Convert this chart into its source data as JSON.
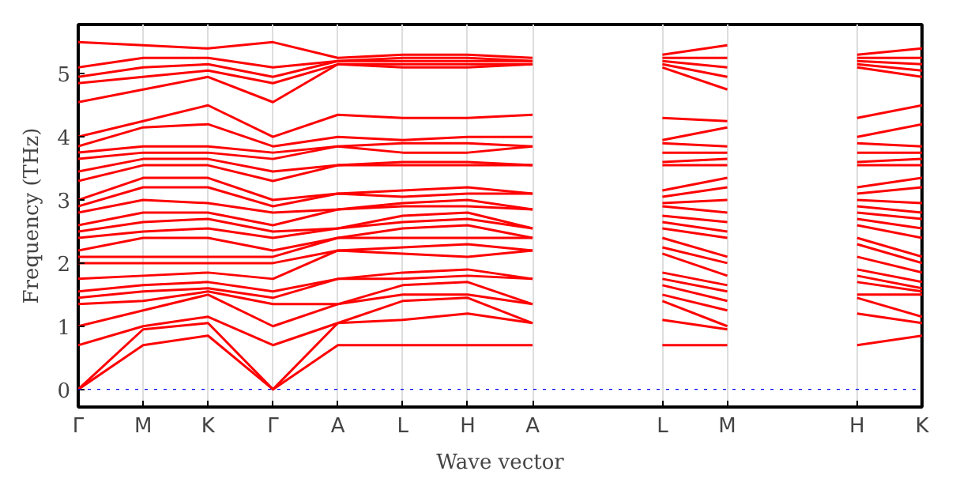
{
  "chart_data": {
    "type": "line",
    "ylabel": "Frequency (THz)",
    "xlabel": "Wave vector",
    "ylim": [
      -0.28,
      5.78
    ],
    "grid": "x",
    "line_style": "solid",
    "categories": [
      "Γ",
      "M",
      "K",
      "Γ",
      "A",
      "L",
      "H",
      "A",
      null,
      "L",
      "M",
      null,
      "H",
      "K"
    ],
    "yticks": [
      0,
      1,
      2,
      3,
      4,
      5
    ],
    "ref_lines": [
      {
        "axis": "y",
        "value": 0,
        "label": null,
        "color": "#0000ff",
        "line_style": "dotted"
      }
    ],
    "series": [
      {
        "color": "#ff0000",
        "values": [
          0,
          0.7,
          0.85,
          0,
          0.7,
          0.7,
          0.7,
          0.7,
          null,
          0.7,
          0.7,
          null,
          0.7,
          0.85
        ]
      },
      {
        "color": "#ff0000",
        "values": [
          0,
          0.95,
          1.05,
          0,
          1.05,
          1.1,
          1.2,
          1.05,
          null,
          1.1,
          0.95,
          null,
          1.2,
          1.05
        ]
      },
      {
        "color": "#ff0000",
        "values": [
          0.7,
          1.0,
          1.15,
          0.7,
          1.05,
          1.4,
          1.45,
          1.05,
          null,
          1.4,
          1.0,
          null,
          1.45,
          1.15
        ]
      },
      {
        "color": "#ff0000",
        "values": [
          1.0,
          1.25,
          1.5,
          1.0,
          1.35,
          1.5,
          1.5,
          1.35,
          null,
          1.5,
          1.25,
          null,
          1.5,
          1.5
        ]
      },
      {
        "color": "#ff0000",
        "values": [
          1.35,
          1.4,
          1.55,
          1.35,
          1.35,
          1.65,
          1.7,
          1.35,
          null,
          1.65,
          1.4,
          null,
          1.7,
          1.55
        ]
      },
      {
        "color": "#ff0000",
        "values": [
          1.45,
          1.55,
          1.6,
          1.45,
          1.75,
          1.75,
          1.8,
          1.75,
          null,
          1.75,
          1.55,
          null,
          1.8,
          1.6
        ]
      },
      {
        "color": "#ff0000",
        "values": [
          1.55,
          1.65,
          1.7,
          1.55,
          1.75,
          1.85,
          1.9,
          1.75,
          null,
          1.85,
          1.65,
          null,
          1.9,
          1.7
        ]
      },
      {
        "color": "#ff0000",
        "values": [
          1.75,
          1.8,
          1.85,
          1.75,
          2.2,
          2.15,
          2.1,
          2.2,
          null,
          2.15,
          1.8,
          null,
          2.1,
          1.85
        ]
      },
      {
        "color": "#ff0000",
        "values": [
          2.0,
          2.0,
          2.0,
          2.0,
          2.2,
          2.25,
          2.3,
          2.2,
          null,
          2.25,
          2.0,
          null,
          2.3,
          2.0
        ]
      },
      {
        "color": "#ff0000",
        "values": [
          2.1,
          2.1,
          2.1,
          2.1,
          2.4,
          2.4,
          2.4,
          2.4,
          null,
          2.4,
          2.1,
          null,
          2.4,
          2.1
        ]
      },
      {
        "color": "#ff0000",
        "values": [
          2.2,
          2.4,
          2.4,
          2.2,
          2.4,
          2.55,
          2.6,
          2.4,
          null,
          2.55,
          2.4,
          null,
          2.6,
          2.4
        ]
      },
      {
        "color": "#ff0000",
        "values": [
          2.4,
          2.5,
          2.55,
          2.4,
          2.55,
          2.65,
          2.7,
          2.55,
          null,
          2.65,
          2.5,
          null,
          2.7,
          2.55
        ]
      },
      {
        "color": "#ff0000",
        "values": [
          2.5,
          2.65,
          2.7,
          2.5,
          2.55,
          2.75,
          2.8,
          2.55,
          null,
          2.75,
          2.65,
          null,
          2.8,
          2.7
        ]
      },
      {
        "color": "#ff0000",
        "values": [
          2.6,
          2.8,
          2.8,
          2.6,
          2.85,
          2.9,
          2.9,
          2.85,
          null,
          2.9,
          2.8,
          null,
          2.9,
          2.8
        ]
      },
      {
        "color": "#ff0000",
        "values": [
          2.8,
          3.0,
          2.95,
          2.8,
          2.85,
          2.95,
          3.0,
          2.85,
          null,
          2.95,
          3.0,
          null,
          3.0,
          2.95
        ]
      },
      {
        "color": "#ff0000",
        "values": [
          2.9,
          3.2,
          3.2,
          2.9,
          3.1,
          3.05,
          3.1,
          3.1,
          null,
          3.05,
          3.2,
          null,
          3.1,
          3.2
        ]
      },
      {
        "color": "#ff0000",
        "values": [
          3.0,
          3.35,
          3.35,
          3.0,
          3.1,
          3.15,
          3.2,
          3.1,
          null,
          3.15,
          3.35,
          null,
          3.2,
          3.35
        ]
      },
      {
        "color": "#ff0000",
        "values": [
          3.3,
          3.55,
          3.55,
          3.3,
          3.55,
          3.55,
          3.55,
          3.55,
          null,
          3.55,
          3.55,
          null,
          3.55,
          3.55
        ]
      },
      {
        "color": "#ff0000",
        "values": [
          3.45,
          3.65,
          3.65,
          3.45,
          3.55,
          3.6,
          3.6,
          3.55,
          null,
          3.6,
          3.65,
          null,
          3.6,
          3.65
        ]
      },
      {
        "color": "#ff0000",
        "values": [
          3.65,
          3.75,
          3.75,
          3.65,
          3.85,
          3.75,
          3.75,
          3.85,
          null,
          3.75,
          3.75,
          null,
          3.75,
          3.75
        ]
      },
      {
        "color": "#ff0000",
        "values": [
          3.75,
          3.85,
          3.85,
          3.75,
          3.85,
          3.9,
          3.9,
          3.85,
          null,
          3.9,
          3.85,
          null,
          3.9,
          3.85
        ]
      },
      {
        "color": "#ff0000",
        "values": [
          3.85,
          4.15,
          4.2,
          3.85,
          4.0,
          3.95,
          4.0,
          4.0,
          null,
          3.95,
          4.15,
          null,
          4.0,
          4.2
        ]
      },
      {
        "color": "#ff0000",
        "values": [
          4.0,
          4.25,
          4.5,
          4.0,
          4.35,
          4.3,
          4.3,
          4.35,
          null,
          4.3,
          4.25,
          null,
          4.3,
          4.5
        ]
      },
      {
        "color": "#ff0000",
        "values": [
          4.55,
          4.75,
          4.95,
          4.55,
          5.15,
          5.1,
          5.1,
          5.15,
          null,
          5.1,
          4.75,
          null,
          5.1,
          4.95
        ]
      },
      {
        "color": "#ff0000",
        "values": [
          4.85,
          4.95,
          5.05,
          4.85,
          5.15,
          5.15,
          5.15,
          5.15,
          null,
          5.15,
          4.95,
          null,
          5.15,
          5.05
        ]
      },
      {
        "color": "#ff0000",
        "values": [
          4.95,
          5.1,
          5.15,
          4.95,
          5.2,
          5.2,
          5.2,
          5.2,
          null,
          5.2,
          5.1,
          null,
          5.2,
          5.15
        ]
      },
      {
        "color": "#ff0000",
        "values": [
          5.1,
          5.25,
          5.25,
          5.1,
          5.2,
          5.25,
          5.25,
          5.2,
          null,
          5.25,
          5.25,
          null,
          5.25,
          5.25
        ]
      },
      {
        "color": "#ff0000",
        "values": [
          5.5,
          5.45,
          5.4,
          5.5,
          5.25,
          5.3,
          5.3,
          5.25,
          null,
          5.3,
          5.45,
          null,
          5.3,
          5.4
        ]
      }
    ]
  }
}
